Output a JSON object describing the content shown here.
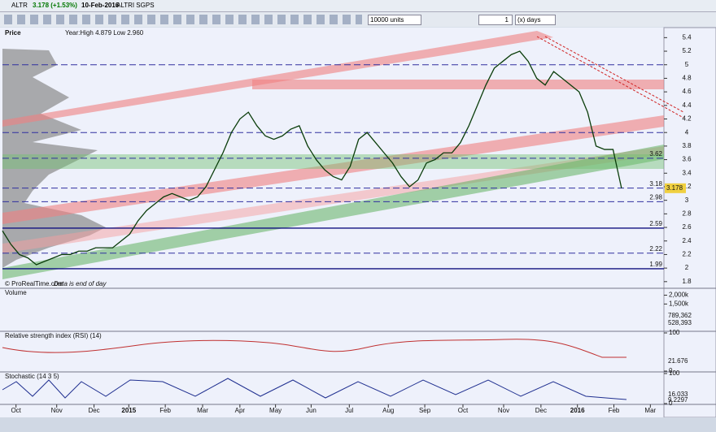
{
  "toolbar": {
    "symbol": "ALTR",
    "quote": "3.178 (+1.53%)",
    "date": "10-Feb-2016",
    "name": "ALTRI SGPS",
    "units": "10000 units",
    "period_n": "1",
    "period_unit": "(x) days"
  },
  "chart_data": [
    {
      "type": "line",
      "title": "Price",
      "subtitle": "Year:High 4.879 Low 2.960",
      "footer": "© ProRealTime.com",
      "footer_note": "Data is end of day",
      "color": "#0a3d0a",
      "x": [
        0,
        1,
        2,
        3,
        4,
        5,
        6,
        7,
        8,
        9,
        10,
        11,
        12,
        13,
        14,
        15,
        16,
        17,
        18,
        19,
        20,
        21,
        22,
        23,
        24,
        25,
        26,
        27,
        28,
        29,
        30,
        31,
        32,
        33,
        34,
        35,
        36,
        37,
        38,
        39,
        40,
        41,
        42,
        43,
        44,
        45,
        46,
        47,
        48,
        49,
        50,
        51,
        52,
        53,
        54,
        55,
        56,
        57,
        58,
        59,
        60,
        61,
        62,
        63,
        64,
        65,
        66,
        67,
        68,
        69,
        70,
        71,
        72,
        73
      ],
      "values": [
        2.55,
        2.35,
        2.2,
        2.15,
        2.05,
        2.1,
        2.15,
        2.2,
        2.2,
        2.25,
        2.25,
        2.3,
        2.3,
        2.3,
        2.4,
        2.5,
        2.7,
        2.85,
        2.95,
        3.05,
        3.1,
        3.05,
        3.0,
        3.05,
        3.2,
        3.45,
        3.7,
        4.0,
        4.2,
        4.3,
        4.1,
        3.95,
        3.9,
        3.95,
        4.05,
        4.1,
        3.8,
        3.6,
        3.45,
        3.35,
        3.3,
        3.5,
        3.9,
        4.0,
        3.85,
        3.7,
        3.55,
        3.35,
        3.2,
        3.3,
        3.55,
        3.6,
        3.7,
        3.7,
        3.85,
        4.1,
        4.4,
        4.7,
        4.95,
        5.05,
        5.15,
        5.2,
        5.05,
        4.8,
        4.7,
        4.9,
        4.8,
        4.7,
        4.6,
        4.3,
        3.8,
        3.75,
        3.75,
        3.178
      ],
      "xlim": [
        0,
        78
      ],
      "xticks": [
        {
          "value": 1.6,
          "label": "Oct"
        },
        {
          "value": 6.4,
          "label": "Nov"
        },
        {
          "value": 10.8,
          "label": "Dec"
        },
        {
          "value": 14.9,
          "label": "2015"
        },
        {
          "value": 19.2,
          "label": "Feb"
        },
        {
          "value": 23.6,
          "label": "Mar"
        },
        {
          "value": 28,
          "label": "Apr"
        },
        {
          "value": 32.2,
          "label": "May"
        },
        {
          "value": 36.4,
          "label": "Jun"
        },
        {
          "value": 40.9,
          "label": "Jul"
        },
        {
          "value": 45.5,
          "label": "Aug"
        },
        {
          "value": 49.8,
          "label": "Sep"
        },
        {
          "value": 54.3,
          "label": "Oct"
        },
        {
          "value": 59.1,
          "label": "Nov"
        },
        {
          "value": 63.5,
          "label": "Dec"
        },
        {
          "value": 67.8,
          "label": "2016"
        },
        {
          "value": 72.1,
          "label": "Feb"
        },
        {
          "value": 76.4,
          "label": "Mar"
        }
      ],
      "ylim": [
        1.75,
        5.5
      ],
      "yticks": [
        1.8,
        2,
        2.2,
        2.4,
        2.6,
        2.8,
        3,
        3.2,
        3.4,
        3.6,
        3.8,
        4,
        4.2,
        4.4,
        4.6,
        4.8,
        5,
        5.2,
        5.4
      ],
      "levels": [
        3.62,
        3.18,
        2.98,
        2.59,
        2.22,
        1.99
      ],
      "level_colors": [
        "#3030a0",
        "#3030a0",
        "#3030a0",
        "#101080",
        "#3030a0",
        "#101080"
      ],
      "level_solid": [
        false,
        false,
        false,
        true,
        false,
        true
      ],
      "unlabeled_levels": [
        5.0,
        4.0
      ]
    },
    {
      "type": "volume",
      "title": "Volume",
      "yticks": [
        {
          "value": 2000000,
          "label": "2,000k"
        },
        {
          "value": 1500000,
          "label": "1,500k"
        }
      ],
      "ylim": [
        0,
        2300000
      ],
      "last_labels": [
        "789,362",
        "528,393"
      ]
    },
    {
      "type": "rsi",
      "title": "Relative strength index (RSI) (14)",
      "yticks": [
        100,
        0
      ],
      "ylim": [
        0,
        100
      ],
      "last_label": "21.676"
    },
    {
      "type": "stochastic",
      "title": "Stochastic (14 3 5)",
      "yticks": [
        100,
        0
      ],
      "ylim": [
        0,
        100
      ],
      "last_labels": [
        "16.033",
        "9.2297"
      ]
    }
  ]
}
